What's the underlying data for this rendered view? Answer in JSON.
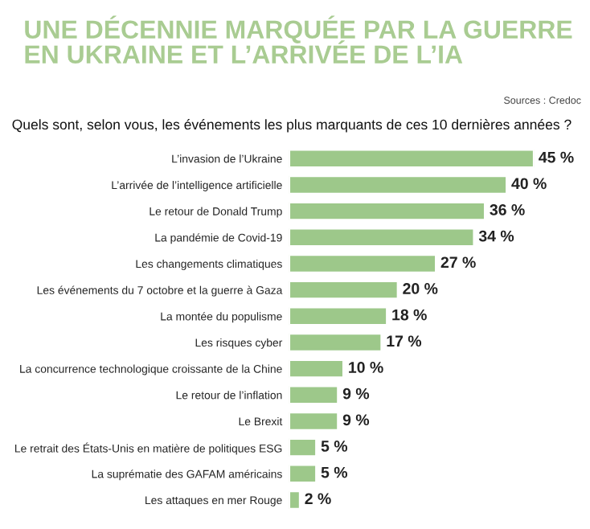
{
  "chart_data": {
    "type": "bar",
    "orientation": "horizontal",
    "title": "UNE DÉCENNIE MARQUÉE PAR LA GUERRE\nEN UKRAINE ET L’ARRIVÉE DE L’IA",
    "subtitle": "Quels sont, selon vous, les événements les plus marquants de ces 10 dernières années ?",
    "annotations": [
      "Sources : Credoc"
    ],
    "categories": [
      "L’invasion de l’Ukraine",
      "L’arrivée de l’intelligence artificielle",
      "Le retour de Donald Trump",
      "La pandémie de Covid-19",
      "Les changements climatiques",
      "Les événements du 7 octobre et la guerre à Gaza",
      "La montée du populisme",
      "Les risques cyber",
      "La concurrence technologique croissante de la Chine",
      "Le retour de l’inflation",
      "Le Brexit",
      "Le retrait des États-Unis en matière de politiques ESG",
      "La suprématie des GAFAM américains",
      "Les attaques en mer Rouge"
    ],
    "values": [
      45,
      40,
      36,
      34,
      27,
      20,
      18,
      17,
      10,
      9,
      9,
      5,
      5,
      2
    ],
    "value_labels": [
      "45 %",
      "40 %",
      "36 %",
      "34 %",
      "27 %",
      "20 %",
      "18 %",
      "17 %",
      "10 %",
      "9 %",
      "9 %",
      "5 %",
      "5 %",
      "2 %"
    ],
    "color": "#9dc88a"
  }
}
